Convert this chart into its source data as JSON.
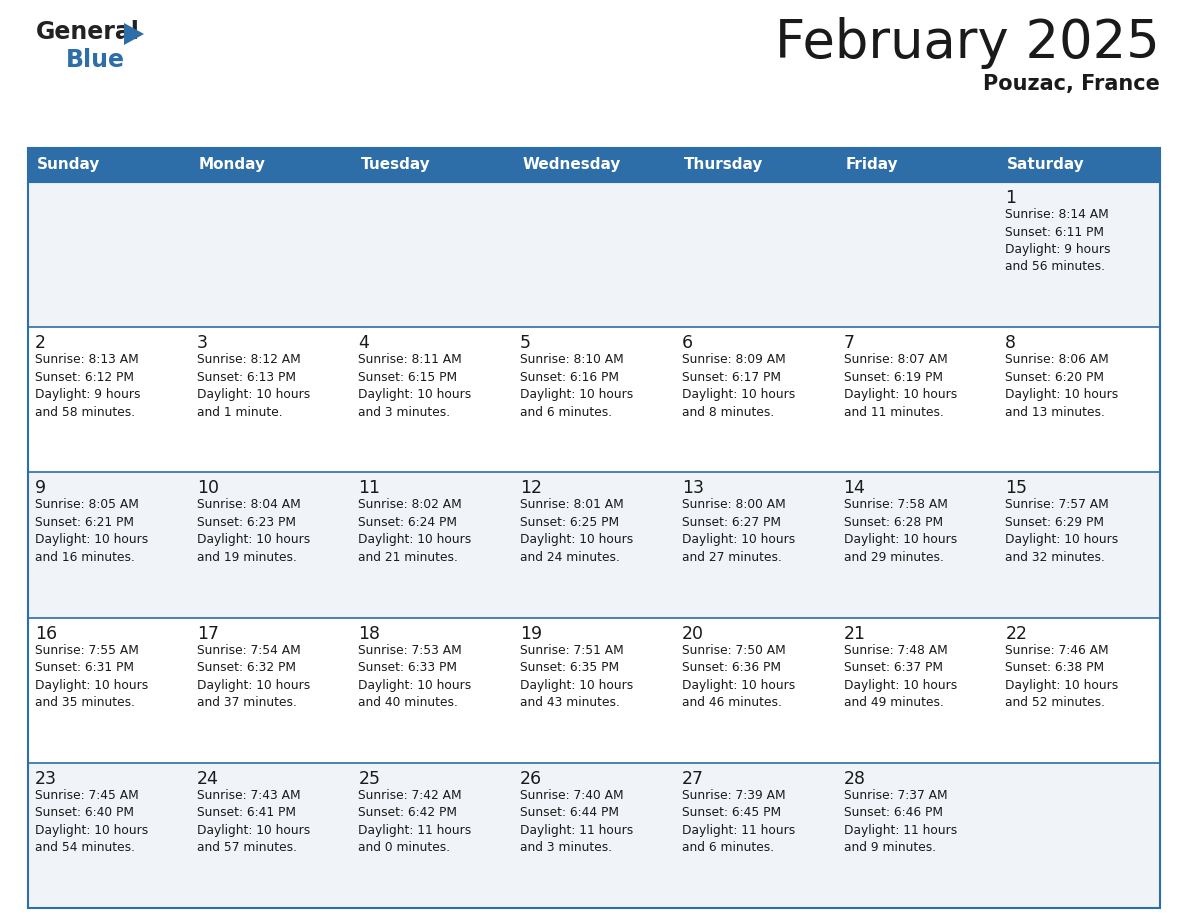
{
  "title": "February 2025",
  "subtitle": "Pouzac, France",
  "header_color": "#2d6da8",
  "header_text_color": "#ffffff",
  "cell_bg_even": "#f0f4f8",
  "cell_bg_odd": "#ffffff",
  "border_color": "#2d6da8",
  "text_color": "#1a1a1a",
  "days_of_week": [
    "Sunday",
    "Monday",
    "Tuesday",
    "Wednesday",
    "Thursday",
    "Friday",
    "Saturday"
  ],
  "weeks": [
    [
      {
        "day": null,
        "info": null
      },
      {
        "day": null,
        "info": null
      },
      {
        "day": null,
        "info": null
      },
      {
        "day": null,
        "info": null
      },
      {
        "day": null,
        "info": null
      },
      {
        "day": null,
        "info": null
      },
      {
        "day": "1",
        "info": "Sunrise: 8:14 AM\nSunset: 6:11 PM\nDaylight: 9 hours\nand 56 minutes."
      }
    ],
    [
      {
        "day": "2",
        "info": "Sunrise: 8:13 AM\nSunset: 6:12 PM\nDaylight: 9 hours\nand 58 minutes."
      },
      {
        "day": "3",
        "info": "Sunrise: 8:12 AM\nSunset: 6:13 PM\nDaylight: 10 hours\nand 1 minute."
      },
      {
        "day": "4",
        "info": "Sunrise: 8:11 AM\nSunset: 6:15 PM\nDaylight: 10 hours\nand 3 minutes."
      },
      {
        "day": "5",
        "info": "Sunrise: 8:10 AM\nSunset: 6:16 PM\nDaylight: 10 hours\nand 6 minutes."
      },
      {
        "day": "6",
        "info": "Sunrise: 8:09 AM\nSunset: 6:17 PM\nDaylight: 10 hours\nand 8 minutes."
      },
      {
        "day": "7",
        "info": "Sunrise: 8:07 AM\nSunset: 6:19 PM\nDaylight: 10 hours\nand 11 minutes."
      },
      {
        "day": "8",
        "info": "Sunrise: 8:06 AM\nSunset: 6:20 PM\nDaylight: 10 hours\nand 13 minutes."
      }
    ],
    [
      {
        "day": "9",
        "info": "Sunrise: 8:05 AM\nSunset: 6:21 PM\nDaylight: 10 hours\nand 16 minutes."
      },
      {
        "day": "10",
        "info": "Sunrise: 8:04 AM\nSunset: 6:23 PM\nDaylight: 10 hours\nand 19 minutes."
      },
      {
        "day": "11",
        "info": "Sunrise: 8:02 AM\nSunset: 6:24 PM\nDaylight: 10 hours\nand 21 minutes."
      },
      {
        "day": "12",
        "info": "Sunrise: 8:01 AM\nSunset: 6:25 PM\nDaylight: 10 hours\nand 24 minutes."
      },
      {
        "day": "13",
        "info": "Sunrise: 8:00 AM\nSunset: 6:27 PM\nDaylight: 10 hours\nand 27 minutes."
      },
      {
        "day": "14",
        "info": "Sunrise: 7:58 AM\nSunset: 6:28 PM\nDaylight: 10 hours\nand 29 minutes."
      },
      {
        "day": "15",
        "info": "Sunrise: 7:57 AM\nSunset: 6:29 PM\nDaylight: 10 hours\nand 32 minutes."
      }
    ],
    [
      {
        "day": "16",
        "info": "Sunrise: 7:55 AM\nSunset: 6:31 PM\nDaylight: 10 hours\nand 35 minutes."
      },
      {
        "day": "17",
        "info": "Sunrise: 7:54 AM\nSunset: 6:32 PM\nDaylight: 10 hours\nand 37 minutes."
      },
      {
        "day": "18",
        "info": "Sunrise: 7:53 AM\nSunset: 6:33 PM\nDaylight: 10 hours\nand 40 minutes."
      },
      {
        "day": "19",
        "info": "Sunrise: 7:51 AM\nSunset: 6:35 PM\nDaylight: 10 hours\nand 43 minutes."
      },
      {
        "day": "20",
        "info": "Sunrise: 7:50 AM\nSunset: 6:36 PM\nDaylight: 10 hours\nand 46 minutes."
      },
      {
        "day": "21",
        "info": "Sunrise: 7:48 AM\nSunset: 6:37 PM\nDaylight: 10 hours\nand 49 minutes."
      },
      {
        "day": "22",
        "info": "Sunrise: 7:46 AM\nSunset: 6:38 PM\nDaylight: 10 hours\nand 52 minutes."
      }
    ],
    [
      {
        "day": "23",
        "info": "Sunrise: 7:45 AM\nSunset: 6:40 PM\nDaylight: 10 hours\nand 54 minutes."
      },
      {
        "day": "24",
        "info": "Sunrise: 7:43 AM\nSunset: 6:41 PM\nDaylight: 10 hours\nand 57 minutes."
      },
      {
        "day": "25",
        "info": "Sunrise: 7:42 AM\nSunset: 6:42 PM\nDaylight: 11 hours\nand 0 minutes."
      },
      {
        "day": "26",
        "info": "Sunrise: 7:40 AM\nSunset: 6:44 PM\nDaylight: 11 hours\nand 3 minutes."
      },
      {
        "day": "27",
        "info": "Sunrise: 7:39 AM\nSunset: 6:45 PM\nDaylight: 11 hours\nand 6 minutes."
      },
      {
        "day": "28",
        "info": "Sunrise: 7:37 AM\nSunset: 6:46 PM\nDaylight: 11 hours\nand 9 minutes."
      },
      {
        "day": null,
        "info": null
      }
    ]
  ]
}
